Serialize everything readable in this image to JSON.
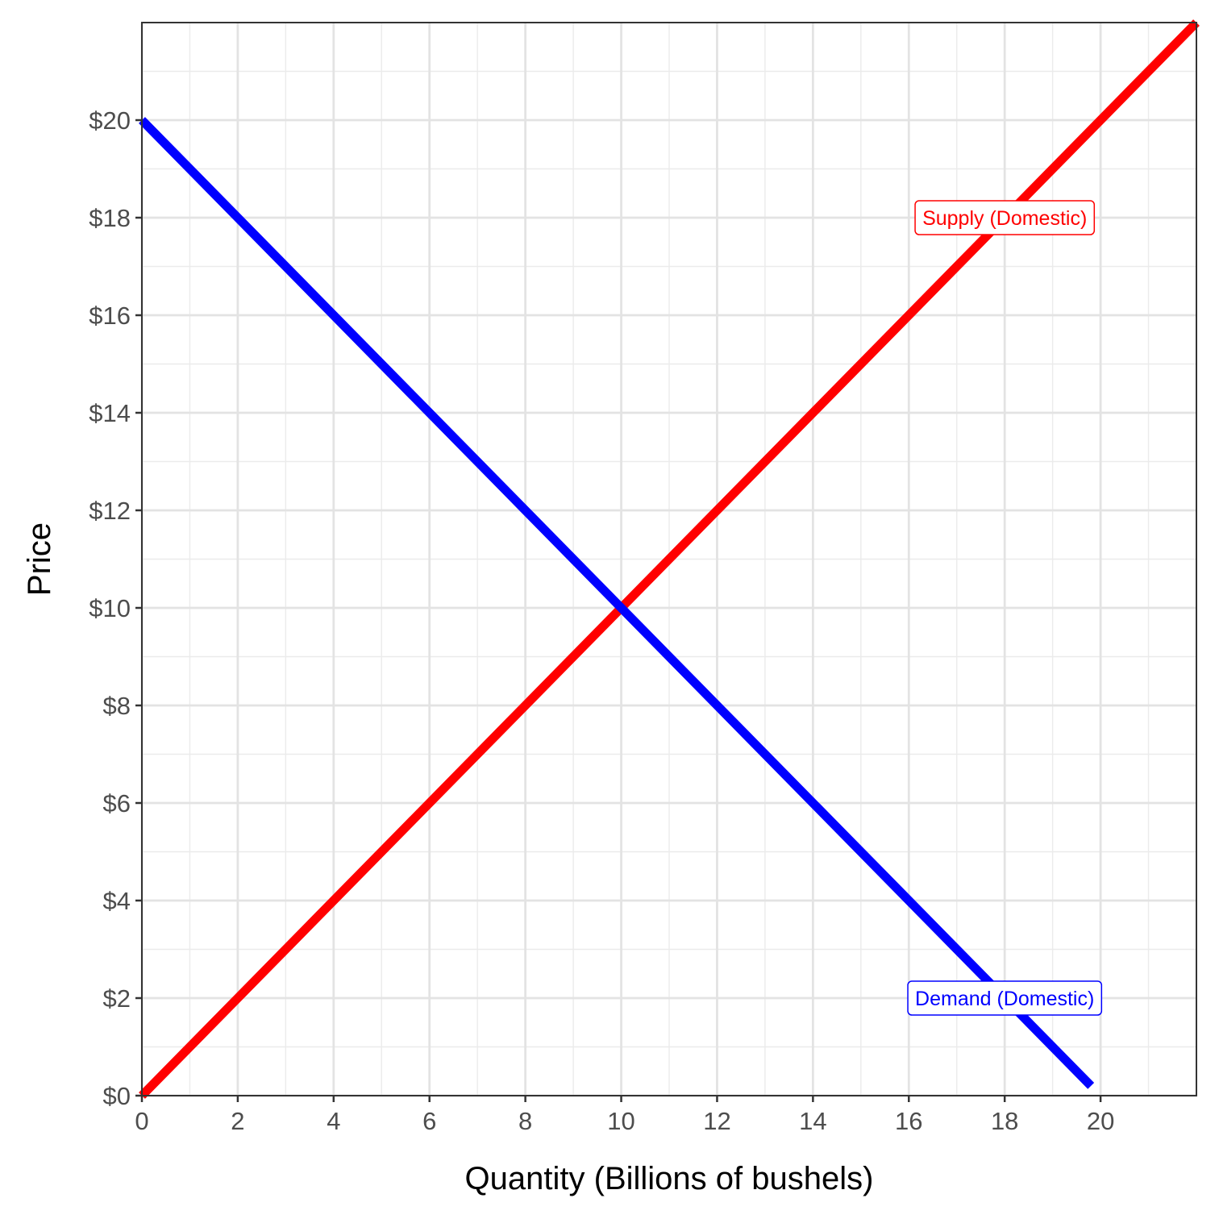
{
  "chart_data": {
    "type": "line",
    "xlabel": "Quantity (Billions of bushels)",
    "ylabel": "Price",
    "xlim": [
      0,
      22
    ],
    "ylim": [
      0,
      22
    ],
    "x_ticks": [
      0,
      2,
      4,
      6,
      8,
      10,
      12,
      14,
      16,
      18,
      20
    ],
    "x_tick_labels": [
      "0",
      "2",
      "4",
      "6",
      "8",
      "10",
      "12",
      "14",
      "16",
      "18",
      "20"
    ],
    "y_ticks": [
      0,
      2,
      4,
      6,
      8,
      10,
      12,
      14,
      16,
      18,
      20
    ],
    "y_tick_labels": [
      "$0",
      "$2",
      "$4",
      "$6",
      "$8",
      "$10",
      "$12",
      "$14",
      "$16",
      "$18",
      "$20"
    ],
    "grid": true,
    "series": [
      {
        "name": "Supply (Domestic)",
        "color": "#ff0000",
        "x": [
          0,
          22
        ],
        "y": [
          0,
          22
        ],
        "label_at": [
          18,
          18
        ]
      },
      {
        "name": "Demand (Domestic)",
        "color": "#0000ff",
        "x": [
          0,
          19.8
        ],
        "y": [
          20,
          0.2
        ],
        "label_at": [
          18,
          2
        ]
      }
    ]
  }
}
